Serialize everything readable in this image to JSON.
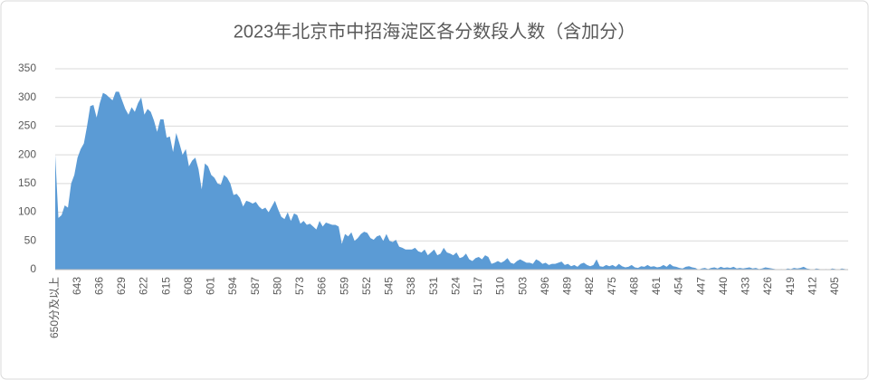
{
  "chart_data": {
    "type": "area",
    "title": "2023年北京市中招海淀区各分数段人数（含加分）",
    "color": "#5b9bd5",
    "grid": true,
    "ylim": [
      0,
      350
    ],
    "yticks": [
      0,
      50,
      100,
      150,
      200,
      250,
      300,
      350
    ],
    "categories": [
      "650分及以上",
      null,
      null,
      null,
      null,
      null,
      null,
      "643",
      null,
      null,
      null,
      null,
      null,
      null,
      "636",
      null,
      null,
      null,
      null,
      null,
      null,
      "629",
      null,
      null,
      null,
      null,
      null,
      null,
      "622",
      null,
      null,
      null,
      null,
      null,
      null,
      "615",
      null,
      null,
      null,
      null,
      null,
      null,
      "608",
      null,
      null,
      null,
      null,
      null,
      null,
      "601",
      null,
      null,
      null,
      null,
      null,
      null,
      "594",
      null,
      null,
      null,
      null,
      null,
      null,
      "587",
      null,
      null,
      null,
      null,
      null,
      null,
      "580",
      null,
      null,
      null,
      null,
      null,
      null,
      "573",
      null,
      null,
      null,
      null,
      null,
      null,
      "566",
      null,
      null,
      null,
      null,
      null,
      null,
      "559",
      null,
      null,
      null,
      null,
      null,
      null,
      "552",
      null,
      null,
      null,
      null,
      null,
      null,
      "545",
      null,
      null,
      null,
      null,
      null,
      null,
      "538",
      null,
      null,
      null,
      null,
      null,
      null,
      "531",
      null,
      null,
      null,
      null,
      null,
      null,
      "524",
      null,
      null,
      null,
      null,
      null,
      null,
      "517",
      null,
      null,
      null,
      null,
      null,
      null,
      "510",
      null,
      null,
      null,
      null,
      null,
      null,
      "503",
      null,
      null,
      null,
      null,
      null,
      null,
      "496",
      null,
      null,
      null,
      null,
      null,
      null,
      "489",
      null,
      null,
      null,
      null,
      null,
      null,
      "482",
      null,
      null,
      null,
      null,
      null,
      null,
      "475",
      null,
      null,
      null,
      null,
      null,
      null,
      "468",
      null,
      null,
      null,
      null,
      null,
      null,
      "461",
      null,
      null,
      null,
      null,
      null,
      null,
      "454",
      null,
      null,
      null,
      null,
      null,
      null,
      "447",
      null,
      null,
      null,
      null,
      null,
      null,
      "440",
      null,
      null,
      null,
      null,
      null,
      null,
      "433",
      null,
      null,
      null,
      null,
      null,
      null,
      "426",
      null,
      null,
      null,
      null,
      null,
      null,
      "419",
      null,
      null,
      null,
      null,
      null,
      null,
      "412",
      null,
      null,
      null,
      null,
      null,
      null,
      "405",
      null,
      null,
      null,
      null
    ],
    "values": [
      200,
      90,
      95,
      112,
      108,
      150,
      165,
      195,
      210,
      220,
      250,
      285,
      287,
      265,
      290,
      308,
      305,
      300,
      295,
      310,
      310,
      295,
      280,
      270,
      283,
      275,
      290,
      300,
      270,
      280,
      275,
      260,
      240,
      262,
      262,
      230,
      232,
      205,
      238,
      220,
      200,
      210,
      180,
      190,
      195,
      175,
      140,
      185,
      180,
      165,
      160,
      150,
      148,
      165,
      160,
      150,
      130,
      132,
      125,
      110,
      120,
      118,
      115,
      118,
      110,
      105,
      108,
      100,
      110,
      120,
      105,
      92,
      88,
      100,
      85,
      98,
      95,
      80,
      85,
      78,
      80,
      75,
      70,
      85,
      75,
      82,
      80,
      78,
      78,
      75,
      45,
      62,
      58,
      65,
      50,
      55,
      62,
      66,
      64,
      55,
      52,
      58,
      60,
      50,
      62,
      50,
      48,
      52,
      40,
      38,
      35,
      35,
      35,
      38,
      32,
      30,
      35,
      25,
      30,
      35,
      25,
      28,
      38,
      30,
      28,
      25,
      30,
      20,
      22,
      28,
      18,
      15,
      20,
      22,
      18,
      25,
      22,
      10,
      12,
      15,
      12,
      15,
      20,
      12,
      10,
      15,
      18,
      15,
      12,
      12,
      10,
      18,
      15,
      10,
      12,
      8,
      10,
      10,
      12,
      14,
      8,
      10,
      6,
      8,
      5,
      10,
      12,
      8,
      6,
      8,
      18,
      6,
      5,
      8,
      6,
      8,
      5,
      10,
      6,
      4,
      5,
      8,
      4,
      3,
      6,
      5,
      8,
      5,
      6,
      4,
      5,
      8,
      5,
      10,
      6,
      5,
      3,
      2,
      5,
      6,
      4,
      3,
      0,
      2,
      3,
      1,
      3,
      4,
      2,
      5,
      3,
      4,
      3,
      5,
      2,
      3,
      2,
      3,
      4,
      2,
      3,
      1,
      2,
      4,
      3,
      2,
      1,
      0,
      1,
      0,
      2,
      1,
      3,
      2,
      3,
      5,
      2,
      1,
      0,
      2,
      1,
      0,
      1,
      0,
      2,
      1,
      0,
      2,
      1,
      0
    ]
  }
}
